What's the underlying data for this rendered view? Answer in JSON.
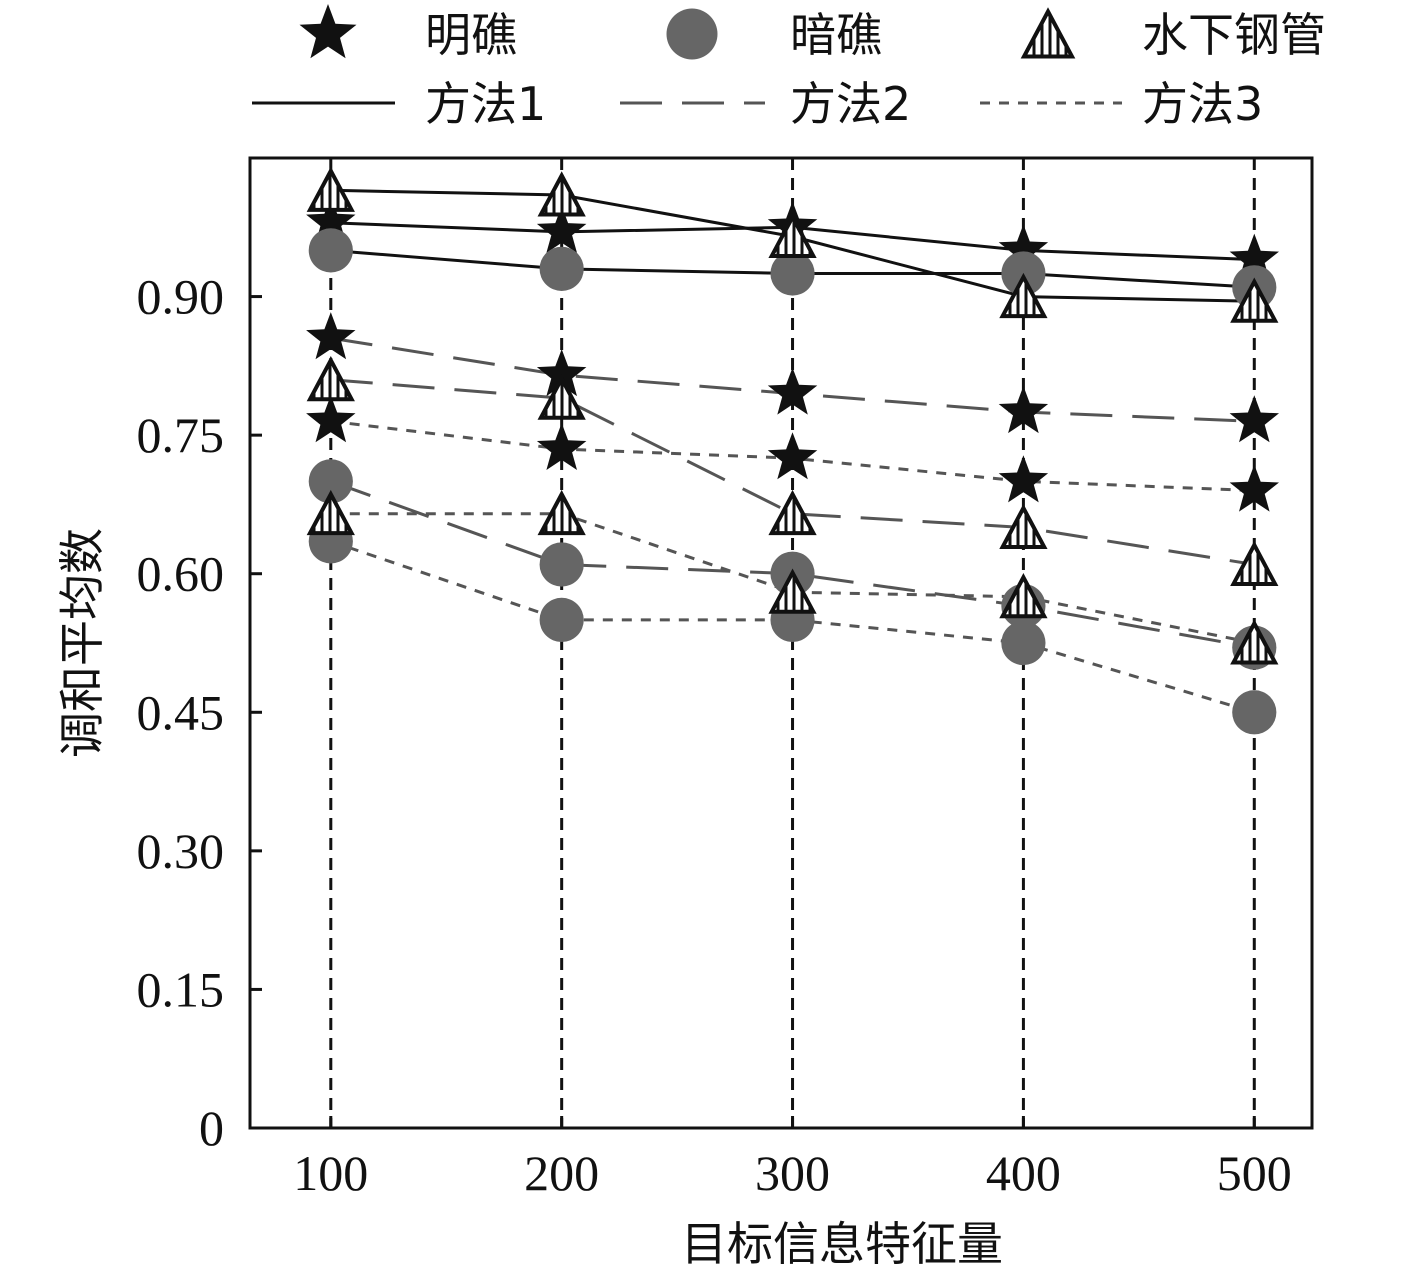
{
  "chart_data": {
    "type": "line",
    "title": "",
    "xlabel": "目标信息特征量",
    "ylabel": "调和平均数",
    "x": [
      100,
      200,
      300,
      400,
      500
    ],
    "xlim": [
      65,
      525
    ],
    "ylim": [
      0,
      1.05
    ],
    "yticks": [
      0,
      0.15,
      0.3,
      0.45,
      0.6,
      0.75,
      0.9
    ],
    "ytick_labels": [
      "0",
      "0.15",
      "0.30",
      "0.45",
      "0.60",
      "0.75",
      "0.90"
    ],
    "xtick_labels": [
      "100",
      "200",
      "300",
      "400",
      "500"
    ],
    "vertical_guides": true,
    "legend": {
      "placement": "top",
      "targets": [
        {
          "name": "明礁",
          "marker": "star",
          "color": "#111111"
        },
        {
          "name": "暗礁",
          "marker": "circle",
          "color": "#666666"
        },
        {
          "name": "水下钢管",
          "marker": "hatched-triangle",
          "color": "#111111"
        }
      ],
      "methods": [
        {
          "name": "方法1",
          "style": "solid",
          "color": "#111111"
        },
        {
          "name": "方法2",
          "style": "long-dash",
          "color": "#555555"
        },
        {
          "name": "方法3",
          "style": "short-dash",
          "color": "#555555"
        }
      ]
    },
    "series": [
      {
        "target": "明礁",
        "method": "方法1",
        "values": [
          0.98,
          0.97,
          0.975,
          0.95,
          0.94
        ]
      },
      {
        "target": "暗礁",
        "method": "方法1",
        "values": [
          0.95,
          0.93,
          0.925,
          0.925,
          0.91
        ]
      },
      {
        "target": "水下钢管",
        "method": "方法1",
        "values": [
          1.015,
          1.01,
          0.965,
          0.9,
          0.895
        ]
      },
      {
        "target": "明礁",
        "method": "方法2",
        "values": [
          0.855,
          0.815,
          0.795,
          0.775,
          0.765
        ]
      },
      {
        "target": "暗礁",
        "method": "方法2",
        "values": [
          0.7,
          0.61,
          0.6,
          0.565,
          0.52
        ]
      },
      {
        "target": "水下钢管",
        "method": "方法2",
        "values": [
          0.81,
          0.79,
          0.665,
          0.65,
          0.61
        ]
      },
      {
        "target": "明礁",
        "method": "方法3",
        "values": [
          0.765,
          0.735,
          0.725,
          0.7,
          0.69
        ]
      },
      {
        "target": "暗礁",
        "method": "方法3",
        "values": [
          0.635,
          0.55,
          0.55,
          0.525,
          0.45
        ]
      },
      {
        "target": "水下钢管",
        "method": "方法3",
        "values": [
          0.665,
          0.665,
          0.58,
          0.575,
          0.525
        ]
      }
    ]
  }
}
